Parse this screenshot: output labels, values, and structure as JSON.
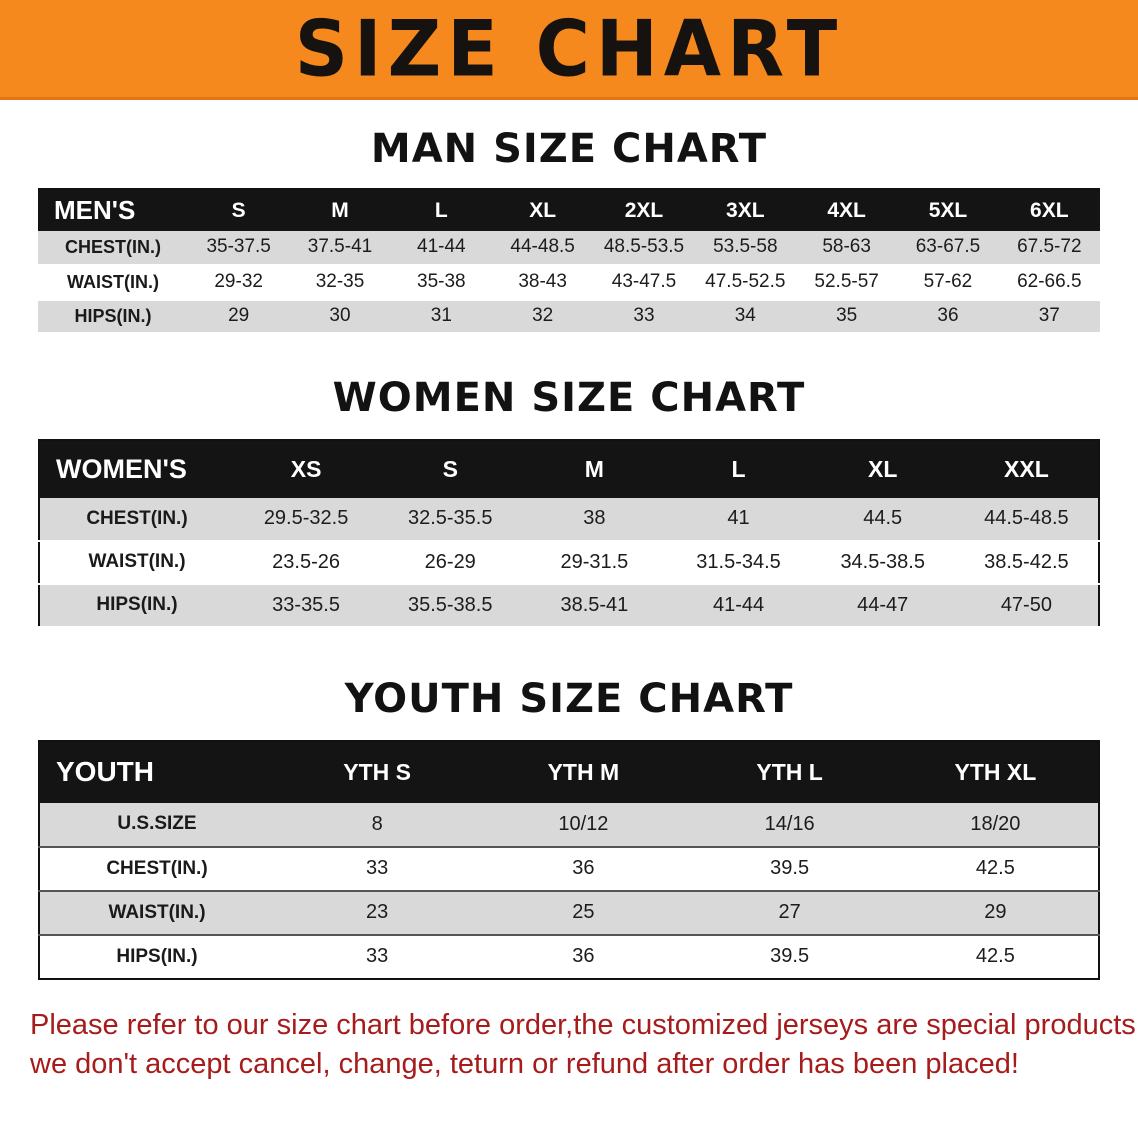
{
  "banner": {
    "title": "SIZE CHART",
    "bg_color": "#F6891E",
    "text_color": "#151210"
  },
  "sections": [
    {
      "heading": "MAN SIZE CHART",
      "table": {
        "header": [
          "MEN'S",
          "S",
          "M",
          "L",
          "XL",
          "2XL",
          "3XL",
          "4XL",
          "5XL",
          "6XL"
        ],
        "rows": [
          [
            "CHEST(IN.)",
            "35-37.5",
            "37.5-41",
            "41-44",
            "44-48.5",
            "48.5-53.5",
            "53.5-58",
            "58-63",
            "63-67.5",
            "67.5-72"
          ],
          [
            "WAIST(IN.)",
            "29-32",
            "32-35",
            "35-38",
            "38-43",
            "43-47.5",
            "47.5-52.5",
            "52.5-57",
            "57-62",
            "62-66.5"
          ],
          [
            "HIPS(IN.)",
            "29",
            "30",
            "31",
            "32",
            "33",
            "34",
            "35",
            "36",
            "37"
          ]
        ]
      }
    },
    {
      "heading": "WOMEN SIZE CHART",
      "table": {
        "header": [
          "WOMEN'S",
          "XS",
          "S",
          "M",
          "L",
          "XL",
          "XXL"
        ],
        "rows": [
          [
            "CHEST(IN.)",
            "29.5-32.5",
            "32.5-35.5",
            "38",
            "41",
            "44.5",
            "44.5-48.5"
          ],
          [
            "WAIST(IN.)",
            "23.5-26",
            "26-29",
            "29-31.5",
            "31.5-34.5",
            "34.5-38.5",
            "38.5-42.5"
          ],
          [
            "HIPS(IN.)",
            "33-35.5",
            "35.5-38.5",
            "38.5-41",
            "41-44",
            "44-47",
            "47-50"
          ]
        ]
      }
    },
    {
      "heading": "YOUTH SIZE CHART",
      "table": {
        "header": [
          "YOUTH",
          "YTH S",
          "YTH M",
          "YTH L",
          "YTH XL"
        ],
        "rows": [
          [
            "U.S.SIZE",
            "8",
            "10/12",
            "14/16",
            "18/20"
          ],
          [
            "CHEST(IN.)",
            "33",
            "36",
            "39.5",
            "42.5"
          ],
          [
            "WAIST(IN.)",
            "23",
            "25",
            "27",
            "29"
          ],
          [
            "HIPS(IN.)",
            "33",
            "36",
            "39.5",
            "42.5"
          ]
        ]
      }
    }
  ],
  "footer": {
    "line1": "Please refer to our size chart before order,the customized jerseys are special products,",
    "line2": "we don't accept cancel, change, teturn or refund after order has been placed!",
    "text_color": "#A61C1C"
  }
}
